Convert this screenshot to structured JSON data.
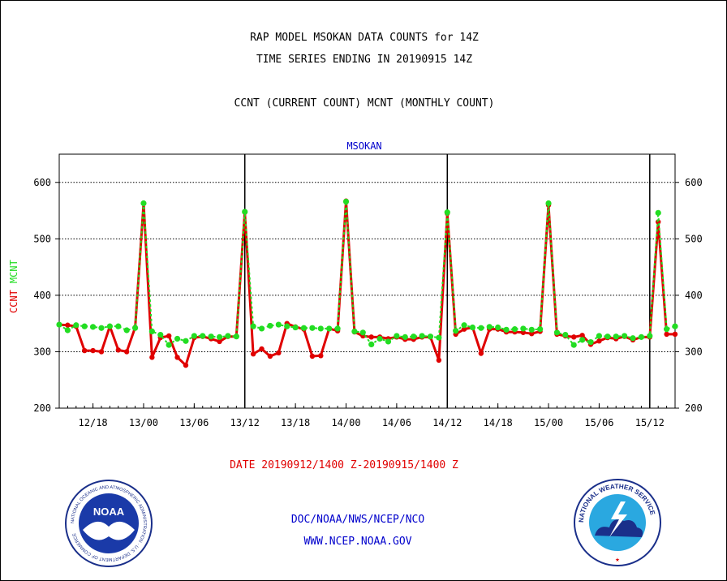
{
  "header": {
    "title_line1": "RAP MODEL MSOKAN DATA COUNTS for 14Z",
    "title_line2": "TIME SERIES ENDING IN 20190915 14Z",
    "subtitle": "CCNT (CURRENT COUNT) MCNT (MONTHLY COUNT)",
    "station": "MSOKAN"
  },
  "footer": {
    "date_range": "DATE 20190912/1400 Z-20190915/1400 Z",
    "credit_line1": "DOC/NOAA/NWS/NCEP/NCO",
    "credit_line2": "WWW.NCEP.NOAA.GOV"
  },
  "logos": {
    "noaa_text": "NOAA",
    "noaa_ring": "NATIONAL OCEANIC AND ATMOSPHERIC ADMINISTRATION · U.S. DEPARTMENT OF COMMERCE",
    "nws_ring": "NATIONAL WEATHER SERVICE"
  },
  "colors": {
    "ccnt": "#e00000",
    "mcnt": "#22dd22",
    "station": "#0000cc",
    "credit": "#0000cc"
  },
  "chart_data": {
    "type": "line",
    "title": "RAP MODEL MSOKAN DATA COUNTS for 14Z",
    "subtitle": "TIME SERIES ENDING IN 20190915 14Z",
    "ylabel_left": "CCNT",
    "ylabel_right": "MCNT",
    "ylim": [
      200,
      650
    ],
    "yticks": [
      200,
      300,
      400,
      500,
      600
    ],
    "grid": true,
    "x_start": "2019-09-12 14Z",
    "x_step_hours": 1,
    "xticks": [
      {
        "label": "12/18",
        "hour": 4
      },
      {
        "label": "13/00",
        "hour": 10
      },
      {
        "label": "13/06",
        "hour": 16
      },
      {
        "label": "13/12",
        "hour": 22
      },
      {
        "label": "13/18",
        "hour": 28
      },
      {
        "label": "14/00",
        "hour": 34
      },
      {
        "label": "14/06",
        "hour": 40
      },
      {
        "label": "14/12",
        "hour": 46
      },
      {
        "label": "14/18",
        "hour": 52
      },
      {
        "label": "15/00",
        "hour": 58
      },
      {
        "label": "15/06",
        "hour": 64
      },
      {
        "label": "15/12",
        "hour": 70
      }
    ],
    "day_separators_hours": [
      22,
      46,
      70
    ],
    "series": [
      {
        "name": "CCNT",
        "values": [
          348,
          347,
          345,
          302,
          302,
          300,
          345,
          303,
          300,
          343,
          563,
          290,
          325,
          328,
          290,
          276,
          325,
          327,
          323,
          318,
          327,
          327,
          547,
          296,
          305,
          292,
          298,
          350,
          344,
          340,
          292,
          293,
          341,
          337,
          567,
          335,
          328,
          326,
          326,
          323,
          326,
          322,
          322,
          326,
          326,
          285,
          545,
          331,
          340,
          343,
          297,
          340,
          340,
          335,
          335,
          334,
          332,
          336,
          560,
          331,
          328,
          326,
          329,
          313,
          319,
          325,
          323,
          327,
          321,
          326,
          326,
          530,
          331,
          331
        ]
      },
      {
        "name": "MCNT",
        "values": [
          348,
          338,
          347,
          345,
          344,
          342,
          345,
          345,
          338,
          342,
          563,
          336,
          330,
          312,
          323,
          319,
          328,
          328,
          327,
          326,
          328,
          327,
          548,
          345,
          341,
          346,
          348,
          345,
          343,
          342,
          342,
          341,
          341,
          341,
          566,
          336,
          334,
          313,
          323,
          318,
          328,
          326,
          327,
          328,
          327,
          325,
          547,
          337,
          347,
          343,
          342,
          344,
          343,
          339,
          340,
          341,
          339,
          340,
          563,
          334,
          330,
          312,
          321,
          317,
          328,
          327,
          327,
          328,
          324,
          326,
          328,
          546,
          340,
          345
        ]
      }
    ]
  }
}
